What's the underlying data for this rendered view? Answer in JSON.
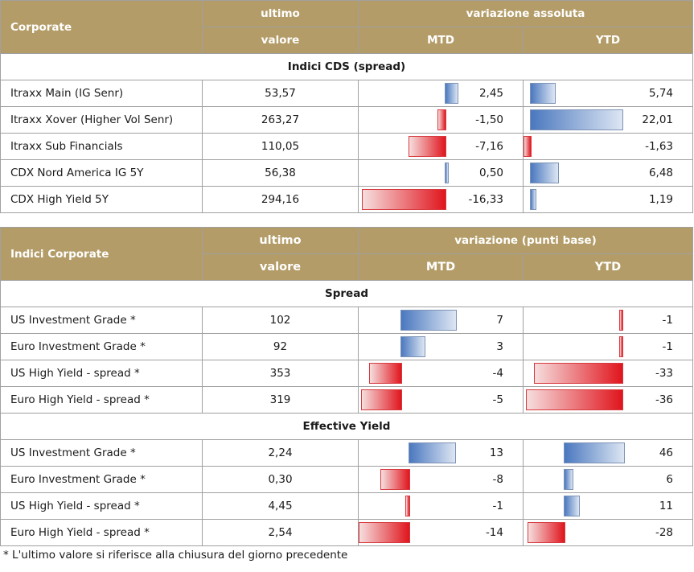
{
  "table1": {
    "header": {
      "corporate": "Corporate",
      "ultimo": "ultimo",
      "valore": "valore",
      "variazione": "variazione assoluta",
      "mtd": "MTD",
      "ytd": "YTD"
    },
    "section": "Indici CDS (spread)",
    "rows": [
      {
        "name": "Itraxx Main (IG Senr)",
        "value": "53,57",
        "mtd": "2,45",
        "ytd": "5,74",
        "mtd_num": 2.45,
        "ytd_num": 5.74
      },
      {
        "name": "Itraxx Xover (Higher Vol Senr)",
        "value": "263,27",
        "mtd": "-1,50",
        "ytd": "22,01",
        "mtd_num": -1.5,
        "ytd_num": 22.01
      },
      {
        "name": "Itraxx Sub Financials",
        "value": "110,05",
        "mtd": "-7,16",
        "ytd": "-1,63",
        "mtd_num": -7.16,
        "ytd_num": -1.63
      },
      {
        "name": "CDX Nord America IG 5Y",
        "value": "56,38",
        "mtd": "0,50",
        "ytd": "6,48",
        "mtd_num": 0.5,
        "ytd_num": 6.48
      },
      {
        "name": "CDX High Yield 5Y",
        "value": "294,16",
        "mtd": "-16,33",
        "ytd": "1,19",
        "mtd_num": -16.33,
        "ytd_num": 1.19
      }
    ]
  },
  "table2": {
    "header": {
      "corporate": "Indici Corporate",
      "ultimo": "ultimo",
      "valore": "valore",
      "variazione": "variazione (punti base)",
      "mtd": "MTD",
      "ytd": "YTD"
    },
    "sections": [
      {
        "title": "Spread",
        "rows": [
          {
            "name": "US Investment Grade *",
            "value": "102",
            "mtd": "7",
            "ytd": "-1",
            "mtd_num": 7,
            "ytd_num": -1
          },
          {
            "name": "Euro Investment Grade *",
            "value": "92",
            "mtd": "3",
            "ytd": "-1",
            "mtd_num": 3,
            "ytd_num": -1
          },
          {
            "name": "US High Yield  - spread *",
            "value": "353",
            "mtd": "-4",
            "ytd": "-33",
            "mtd_num": -4,
            "ytd_num": -33
          },
          {
            "name": "Euro High Yield  - spread *",
            "value": "319",
            "mtd": "-5",
            "ytd": "-36",
            "mtd_num": -5,
            "ytd_num": -36
          }
        ]
      },
      {
        "title": "Effective Yield",
        "rows": [
          {
            "name": "US Investment Grade *",
            "value": "2,24",
            "mtd": "13",
            "ytd": "46",
            "mtd_num": 13,
            "ytd_num": 46
          },
          {
            "name": "Euro Investment Grade *",
            "value": "0,30",
            "mtd": "-8",
            "ytd": "6",
            "mtd_num": -8,
            "ytd_num": 6
          },
          {
            "name": "US High Yield  - spread *",
            "value": "4,45",
            "mtd": "-1",
            "ytd": "11",
            "mtd_num": -1,
            "ytd_num": 11
          },
          {
            "name": "Euro High Yield  - spread *",
            "value": "2,54",
            "mtd": "-14",
            "ytd": "-28",
            "mtd_num": -14,
            "ytd_num": -28
          }
        ]
      }
    ]
  },
  "footnote": "* L'ultimo valore si riferisce alla chiusura del giorno precedente"
}
